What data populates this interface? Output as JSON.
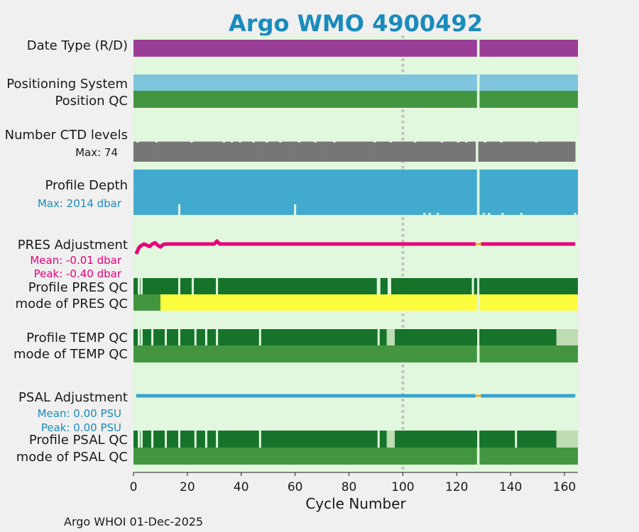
{
  "title": "Argo WMO 4900492",
  "footer": "Argo WHOI 01-Dec-2025",
  "colors": {
    "title": "#1a8bbd",
    "panel_bg": "#e2f8de",
    "date_type": "#9a3d96",
    "positioning": "#7ec4dc",
    "qc_good": "#43963f",
    "qc_dark": "#16742a",
    "qc_light": "#bddcb2",
    "qc_yellow": "#fdfd40",
    "ctd_gray": "#767676",
    "profile_depth": "#43aacf",
    "pres_adj": "#e8007a",
    "psal_adj": "#3aa3cc",
    "gap_marker": "#f0a820",
    "vline": "#c4c4c4"
  },
  "chart_data": {
    "type": "bar",
    "xlabel": "Cycle Number",
    "xlim": [
      0,
      165
    ],
    "xticks": [
      0,
      20,
      40,
      60,
      80,
      100,
      120,
      140,
      160
    ],
    "reference_line_x": 100,
    "missing_cycle": 128,
    "rows": {
      "date_type": {
        "label": "Date Type (R/D)"
      },
      "positioning": {
        "label": "Positioning System"
      },
      "position_qc": {
        "label": "Position QC"
      },
      "ctd_levels": {
        "label": "Number CTD levels",
        "sublabel": "Max: 74",
        "max": 74,
        "typical": 70,
        "low_cycles": [
          2,
          9,
          22,
          34,
          37,
          40,
          45,
          50,
          55,
          62,
          68,
          75,
          90,
          96,
          105,
          115,
          121,
          124,
          131,
          137,
          150
        ]
      },
      "profile_depth": {
        "label": "Profile Depth",
        "sublabel": "Max: 2014 dbar",
        "max": 2014,
        "shallow_cycles": [
          17,
          60,
          108,
          110,
          113,
          130,
          132,
          137,
          144,
          164
        ]
      },
      "pres_adjustment": {
        "label": "PRES Adjustment",
        "mean_label": "Mean: -0.01 dbar",
        "peak_label": "Peak: -0.40 dbar",
        "mean": -0.01,
        "peak": -0.4,
        "points": [
          [
            1,
            -0.4
          ],
          [
            2,
            -0.15
          ],
          [
            3,
            -0.05
          ],
          [
            4,
            0.0
          ],
          [
            5,
            -0.05
          ],
          [
            6,
            -0.1
          ],
          [
            7,
            0.0
          ],
          [
            8,
            0.05
          ],
          [
            9,
            -0.05
          ],
          [
            10,
            -0.12
          ],
          [
            11,
            -0.02
          ],
          [
            12,
            0.0
          ],
          [
            20,
            0.0
          ],
          [
            30,
            0.0
          ],
          [
            31,
            0.12
          ],
          [
            32,
            0.0
          ],
          [
            33,
            0.0
          ],
          [
            60,
            0.0
          ],
          [
            100,
            0.0
          ],
          [
            127,
            0.0
          ],
          [
            129,
            0.0
          ],
          [
            164,
            0.0
          ]
        ]
      },
      "profile_pres_qc": {
        "label": "Profile PRES QC",
        "breaks": [
          2,
          3,
          17,
          22,
          31,
          91,
          95,
          126,
          128
        ]
      },
      "mode_pres_qc": {
        "label": "mode of PRES QC",
        "good_until": 10
      },
      "profile_temp_qc": {
        "label": "Profile TEMP QC",
        "breaks": [
          2,
          3,
          7,
          12,
          17,
          23,
          27,
          31,
          47,
          91,
          95,
          96,
          128
        ],
        "light_from": 157
      },
      "mode_temp_qc": {
        "label": "mode of TEMP QC"
      },
      "psal_adjustment": {
        "label": "PSAL Adjustment",
        "mean_label": "Mean: 0.00 PSU",
        "peak_label": "Peak: 0.00 PSU",
        "mean": 0.0,
        "peak": 0.0
      },
      "profile_psal_qc": {
        "label": "Profile PSAL QC",
        "breaks": [
          2,
          3,
          7,
          12,
          17,
          23,
          27,
          31,
          47,
          91,
          95,
          96,
          128,
          142
        ],
        "light_from": 157
      },
      "mode_psal_qc": {
        "label": "mode of PSAL QC"
      }
    }
  }
}
